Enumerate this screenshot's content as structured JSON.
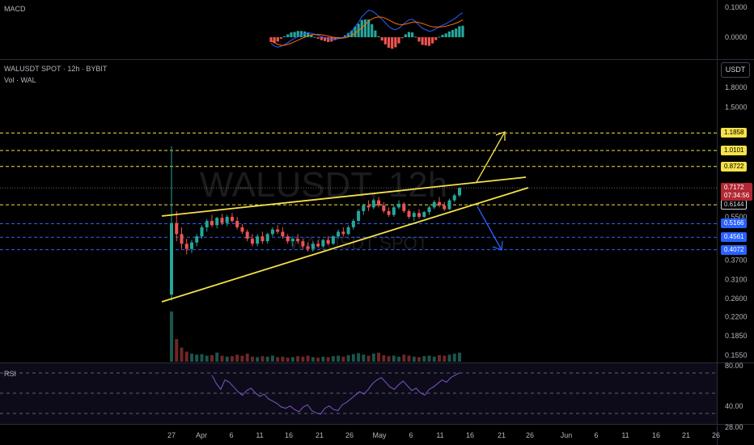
{
  "symbol_line": "WALUSDT SPOT · 12h · BYBIT",
  "volume_label": "Vol · WAL",
  "macd_label": "MACD",
  "rsi_label": "RSI",
  "currency_button": "USDT",
  "watermark": {
    "main": "WALUSDT, 12h",
    "sub": "WALUSDT SPOT"
  },
  "colors": {
    "up": "#26a69a",
    "down": "#ef5350",
    "trend": "#f5e14a",
    "dashed_yellow": "#f5e14a",
    "dashed_blue": "#2962ff",
    "rsi": "#7e57c2",
    "macd_line": "#2962ff",
    "signal_line": "#ff6d00",
    "last_price_bg": "#b22833"
  },
  "chart_data": [
    {
      "type": "candlestick",
      "title": "WALUSDT SPOT · 12h · BYBIT",
      "scale": "log",
      "y_ticks": [
        "1.8000",
        "1.5000",
        "1.1858",
        "1.0101",
        "0.8722",
        "0.7172",
        "0.6144",
        "0.5500",
        "0.5166",
        "0.4561",
        "0.4072",
        "0.3700",
        "0.3100",
        "0.2600",
        "0.2200",
        "0.1850",
        "0.1550"
      ],
      "x_ticks": [
        "27",
        "Apr",
        "6",
        "11",
        "16",
        "21",
        "26",
        "May",
        "6",
        "11",
        "16",
        "21",
        "26",
        "Jun",
        "6",
        "11",
        "16",
        "21",
        "26"
      ],
      "horizontal_levels": [
        {
          "value": "1.1858",
          "style": "yellow-dashed"
        },
        {
          "value": "1.0101",
          "style": "yellow-dashed"
        },
        {
          "value": "0.8722",
          "style": "yellow-dashed"
        },
        {
          "value": "0.6144",
          "style": "yellow-dashed"
        },
        {
          "value": "0.5166",
          "style": "blue-dashed"
        },
        {
          "value": "0.4561",
          "style": "blue-dashed"
        },
        {
          "value": "0.4072",
          "style": "blue-dashed"
        }
      ],
      "last_price": {
        "value": "0.7172",
        "countdown": "07:34:56"
      },
      "candles": [
        {
          "o": 0.27,
          "h": 1.05,
          "l": 0.255,
          "c": 0.52
        },
        {
          "o": 0.52,
          "h": 0.58,
          "l": 0.44,
          "c": 0.47
        },
        {
          "o": 0.47,
          "h": 0.5,
          "l": 0.41,
          "c": 0.43
        },
        {
          "o": 0.43,
          "h": 0.45,
          "l": 0.39,
          "c": 0.41
        },
        {
          "o": 0.41,
          "h": 0.445,
          "l": 0.395,
          "c": 0.435
        },
        {
          "o": 0.435,
          "h": 0.47,
          "l": 0.42,
          "c": 0.46
        },
        {
          "o": 0.46,
          "h": 0.51,
          "l": 0.45,
          "c": 0.5
        },
        {
          "o": 0.5,
          "h": 0.54,
          "l": 0.48,
          "c": 0.53
        },
        {
          "o": 0.53,
          "h": 0.56,
          "l": 0.5,
          "c": 0.51
        },
        {
          "o": 0.51,
          "h": 0.55,
          "l": 0.495,
          "c": 0.545
        },
        {
          "o": 0.545,
          "h": 0.565,
          "l": 0.51,
          "c": 0.52
        },
        {
          "o": 0.52,
          "h": 0.56,
          "l": 0.505,
          "c": 0.55
        },
        {
          "o": 0.55,
          "h": 0.57,
          "l": 0.52,
          "c": 0.53
        },
        {
          "o": 0.53,
          "h": 0.55,
          "l": 0.49,
          "c": 0.5
        },
        {
          "o": 0.5,
          "h": 0.515,
          "l": 0.47,
          "c": 0.48
        },
        {
          "o": 0.48,
          "h": 0.49,
          "l": 0.44,
          "c": 0.45
        },
        {
          "o": 0.45,
          "h": 0.47,
          "l": 0.42,
          "c": 0.43
        },
        {
          "o": 0.43,
          "h": 0.47,
          "l": 0.42,
          "c": 0.46
        },
        {
          "o": 0.46,
          "h": 0.48,
          "l": 0.43,
          "c": 0.44
        },
        {
          "o": 0.44,
          "h": 0.475,
          "l": 0.43,
          "c": 0.47
        },
        {
          "o": 0.47,
          "h": 0.5,
          "l": 0.46,
          "c": 0.49
        },
        {
          "o": 0.49,
          "h": 0.51,
          "l": 0.47,
          "c": 0.48
        },
        {
          "o": 0.48,
          "h": 0.5,
          "l": 0.45,
          "c": 0.46
        },
        {
          "o": 0.46,
          "h": 0.47,
          "l": 0.43,
          "c": 0.44
        },
        {
          "o": 0.44,
          "h": 0.46,
          "l": 0.42,
          "c": 0.45
        },
        {
          "o": 0.45,
          "h": 0.47,
          "l": 0.43,
          "c": 0.44
        },
        {
          "o": 0.44,
          "h": 0.45,
          "l": 0.41,
          "c": 0.42
        },
        {
          "o": 0.42,
          "h": 0.435,
          "l": 0.4,
          "c": 0.41
        },
        {
          "o": 0.41,
          "h": 0.44,
          "l": 0.4,
          "c": 0.43
        },
        {
          "o": 0.43,
          "h": 0.445,
          "l": 0.415,
          "c": 0.42
        },
        {
          "o": 0.42,
          "h": 0.45,
          "l": 0.415,
          "c": 0.445
        },
        {
          "o": 0.445,
          "h": 0.46,
          "l": 0.425,
          "c": 0.43
        },
        {
          "o": 0.43,
          "h": 0.465,
          "l": 0.425,
          "c": 0.46
        },
        {
          "o": 0.46,
          "h": 0.49,
          "l": 0.45,
          "c": 0.48
        },
        {
          "o": 0.48,
          "h": 0.5,
          "l": 0.46,
          "c": 0.47
        },
        {
          "o": 0.47,
          "h": 0.51,
          "l": 0.465,
          "c": 0.5
        },
        {
          "o": 0.5,
          "h": 0.54,
          "l": 0.49,
          "c": 0.53
        },
        {
          "o": 0.53,
          "h": 0.59,
          "l": 0.52,
          "c": 0.58
        },
        {
          "o": 0.58,
          "h": 0.62,
          "l": 0.56,
          "c": 0.61
        },
        {
          "o": 0.61,
          "h": 0.64,
          "l": 0.58,
          "c": 0.6
        },
        {
          "o": 0.6,
          "h": 0.65,
          "l": 0.59,
          "c": 0.64
        },
        {
          "o": 0.64,
          "h": 0.66,
          "l": 0.6,
          "c": 0.61
        },
        {
          "o": 0.61,
          "h": 0.63,
          "l": 0.57,
          "c": 0.58
        },
        {
          "o": 0.58,
          "h": 0.6,
          "l": 0.55,
          "c": 0.56
        },
        {
          "o": 0.56,
          "h": 0.61,
          "l": 0.55,
          "c": 0.6
        },
        {
          "o": 0.6,
          "h": 0.64,
          "l": 0.59,
          "c": 0.62
        },
        {
          "o": 0.62,
          "h": 0.63,
          "l": 0.57,
          "c": 0.58
        },
        {
          "o": 0.58,
          "h": 0.59,
          "l": 0.54,
          "c": 0.55
        },
        {
          "o": 0.55,
          "h": 0.58,
          "l": 0.53,
          "c": 0.57
        },
        {
          "o": 0.57,
          "h": 0.59,
          "l": 0.54,
          "c": 0.55
        },
        {
          "o": 0.55,
          "h": 0.58,
          "l": 0.545,
          "c": 0.575
        },
        {
          "o": 0.575,
          "h": 0.61,
          "l": 0.56,
          "c": 0.6
        },
        {
          "o": 0.6,
          "h": 0.64,
          "l": 0.59,
          "c": 0.63
        },
        {
          "o": 0.63,
          "h": 0.66,
          "l": 0.6,
          "c": 0.61
        },
        {
          "o": 0.61,
          "h": 0.63,
          "l": 0.58,
          "c": 0.59
        },
        {
          "o": 0.59,
          "h": 0.65,
          "l": 0.585,
          "c": 0.64
        },
        {
          "o": 0.64,
          "h": 0.68,
          "l": 0.63,
          "c": 0.67
        },
        {
          "o": 0.67,
          "h": 0.72,
          "l": 0.66,
          "c": 0.7172
        }
      ],
      "volumes": [
        1.0,
        0.45,
        0.28,
        0.2,
        0.16,
        0.14,
        0.15,
        0.12,
        0.13,
        0.18,
        0.12,
        0.1,
        0.11,
        0.14,
        0.12,
        0.16,
        0.1,
        0.09,
        0.11,
        0.1,
        0.12,
        0.09,
        0.1,
        0.08,
        0.09,
        0.11,
        0.1,
        0.12,
        0.09,
        0.08,
        0.1,
        0.09,
        0.11,
        0.12,
        0.1,
        0.13,
        0.15,
        0.17,
        0.14,
        0.12,
        0.16,
        0.18,
        0.13,
        0.11,
        0.12,
        0.1,
        0.14,
        0.12,
        0.1,
        0.09,
        0.11,
        0.12,
        0.1,
        0.13,
        0.12,
        0.14,
        0.16,
        0.18
      ]
    },
    {
      "type": "line",
      "title": "RSI",
      "y_ticks": [
        "80.00",
        "40.00",
        "28.00"
      ],
      "series": [
        {
          "values": [
            72,
            65,
            60,
            68,
            66,
            62,
            58,
            55,
            59,
            61,
            57,
            54,
            56,
            52,
            50,
            48,
            45,
            44,
            46,
            43,
            41,
            45,
            47,
            42,
            40,
            39,
            44,
            46,
            43,
            42,
            47,
            49,
            52,
            55,
            58,
            56,
            60,
            65,
            68,
            70,
            66,
            62,
            60,
            64,
            67,
            63,
            59,
            61,
            57,
            55,
            60,
            62,
            65,
            68,
            66,
            70,
            72,
            74
          ]
        }
      ]
    },
    {
      "type": "line",
      "title": "MACD",
      "y_ticks": [
        "0.1000",
        "0.0000"
      ],
      "series": [
        {
          "values": [
            -0.02,
            -0.03,
            -0.033,
            -0.03,
            -0.025,
            -0.018,
            -0.01,
            -0.004,
            0.003,
            0.008,
            0.012,
            0.015,
            0.013,
            0.01,
            0.006,
            0.002,
            -0.002,
            -0.006,
            -0.008,
            -0.007,
            -0.005,
            -0.003,
            0.002,
            0.01,
            0.02,
            0.035,
            0.05,
            0.068,
            0.08,
            0.09,
            0.088,
            0.08,
            0.07,
            0.06,
            0.048,
            0.036,
            0.028,
            0.025,
            0.03,
            0.04,
            0.05,
            0.058,
            0.06,
            0.052,
            0.04,
            0.03,
            0.025,
            0.02,
            0.022,
            0.028,
            0.035,
            0.04,
            0.045,
            0.052,
            0.058,
            0.065,
            0.075,
            0.082
          ]
        },
        {
          "values": [
            -0.01,
            -0.018,
            -0.024,
            -0.027,
            -0.027,
            -0.024,
            -0.02,
            -0.015,
            -0.01,
            -0.005,
            0.0,
            0.005,
            0.008,
            0.009,
            0.009,
            0.008,
            0.006,
            0.004,
            0.001,
            -0.001,
            -0.002,
            -0.003,
            -0.002,
            0.001,
            0.006,
            0.013,
            0.022,
            0.032,
            0.043,
            0.053,
            0.061,
            0.066,
            0.068,
            0.067,
            0.063,
            0.058,
            0.052,
            0.046,
            0.043,
            0.042,
            0.044,
            0.047,
            0.05,
            0.051,
            0.049,
            0.046,
            0.042,
            0.038,
            0.035,
            0.034,
            0.034,
            0.035,
            0.037,
            0.04,
            0.043,
            0.047,
            0.052,
            0.058
          ]
        }
      ]
    }
  ]
}
